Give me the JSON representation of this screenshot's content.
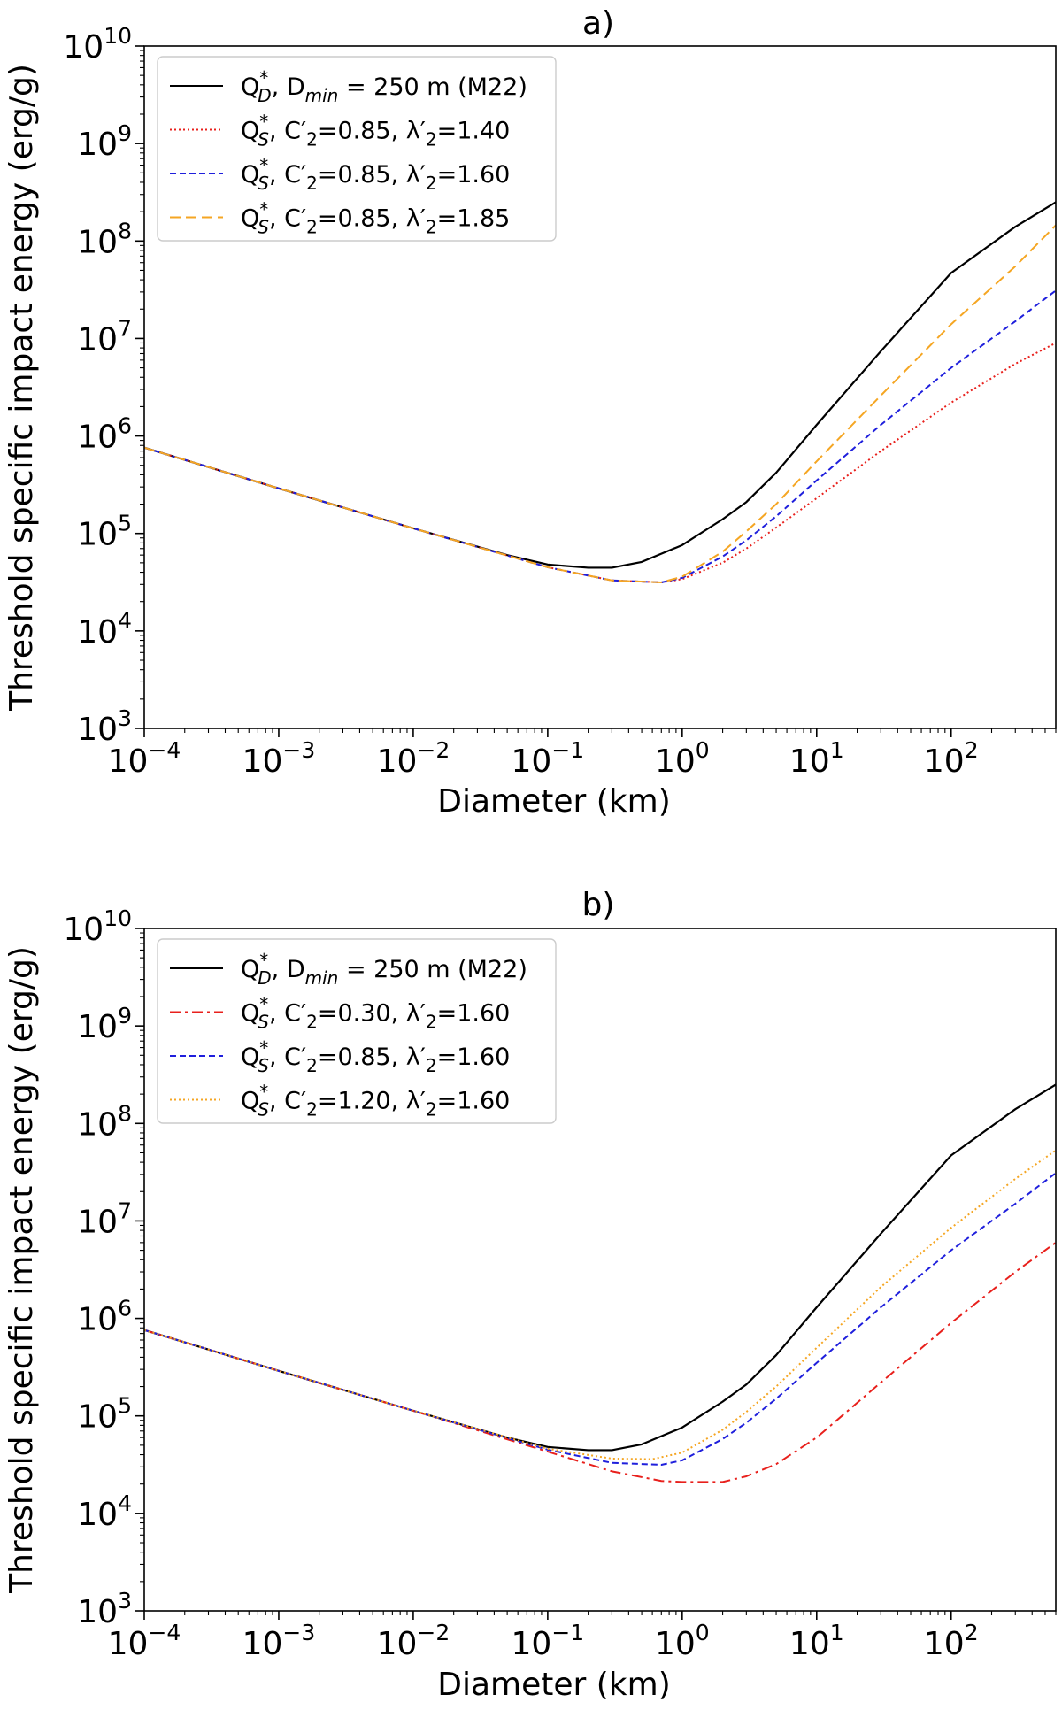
{
  "chart_data": [
    {
      "type": "line",
      "title": "a)",
      "xlabel": "Diameter (km)",
      "ylabel": "Threshold specific impact energy (erg/g)",
      "xscale": "log",
      "yscale": "log",
      "xlim": [
        0.0001,
        600
      ],
      "ylim": [
        1000,
        10000000000
      ],
      "x_tick_labels": [
        {
          "value": 0.0001,
          "base": "10",
          "exp": "−4"
        },
        {
          "value": 0.001,
          "base": "10",
          "exp": "−3"
        },
        {
          "value": 0.01,
          "base": "10",
          "exp": "−2"
        },
        {
          "value": 0.1,
          "base": "10",
          "exp": "−1"
        },
        {
          "value": 1,
          "base": "10",
          "exp": "0"
        },
        {
          "value": 10,
          "base": "10",
          "exp": "1"
        },
        {
          "value": 100,
          "base": "10",
          "exp": "2"
        }
      ],
      "y_tick_labels": [
        {
          "value": 1000,
          "base": "10",
          "exp": "3"
        },
        {
          "value": 10000,
          "base": "10",
          "exp": "4"
        },
        {
          "value": 100000,
          "base": "10",
          "exp": "5"
        },
        {
          "value": 1000000,
          "base": "10",
          "exp": "6"
        },
        {
          "value": 10000000,
          "base": "10",
          "exp": "7"
        },
        {
          "value": 100000000,
          "base": "10",
          "exp": "8"
        },
        {
          "value": 1000000000,
          "base": "10",
          "exp": "9"
        },
        {
          "value": 10000000000,
          "base": "10",
          "exp": "10"
        }
      ],
      "legend_position": "top-left",
      "series": [
        {
          "name": "Q*D, Dmin = 250 m (M22)",
          "label": {
            "q": "Q",
            "sup": "*",
            "sub": "D",
            "text1": ", D",
            "sub2": "min",
            "text2": " = 250 m (M22)"
          },
          "color": "#000000",
          "style": "solid",
          "x": [
            0.0001,
            0.001,
            0.01,
            0.05,
            0.1,
            0.2,
            0.3,
            0.5,
            1,
            2,
            3,
            5,
            10,
            30,
            100,
            300,
            600
          ],
          "y": [
            760000,
            290000,
            113000,
            60000,
            48000,
            44500,
            44500,
            51000,
            76000,
            140000,
            210000,
            420000,
            1300000,
            7400000,
            47000000,
            140000000,
            250000000
          ]
        },
        {
          "name": "Q*S, C′2=0.85, λ′2=1.40",
          "label": {
            "q": "Q",
            "sup": "*",
            "sub": "S",
            "text1": ", C′",
            "sub2": "2",
            "text2": "=0.85, λ′",
            "sub3": "2",
            "text3": "=1.40"
          },
          "color": "#e8201c",
          "style": "dotted",
          "x": [
            0.0001,
            0.001,
            0.01,
            0.1,
            0.3,
            0.7,
            1,
            2,
            3,
            5,
            10,
            30,
            100,
            300,
            600
          ],
          "y": [
            760000,
            290000,
            113000,
            45000,
            33000,
            31500,
            34000,
            50000,
            70000,
            115000,
            230000,
            700000,
            2200000,
            5500000,
            9000000
          ]
        },
        {
          "name": "Q*S, C′2=0.85, λ′2=1.60",
          "label": {
            "q": "Q",
            "sup": "*",
            "sub": "S",
            "text1": ", C′",
            "sub2": "2",
            "text2": "=0.85, λ′",
            "sub3": "2",
            "text3": "=1.60"
          },
          "color": "#1f1fdc",
          "style": "dashed",
          "x": [
            0.0001,
            0.001,
            0.01,
            0.1,
            0.3,
            0.7,
            1,
            2,
            3,
            5,
            10,
            30,
            100,
            300,
            600
          ],
          "y": [
            760000,
            290000,
            113000,
            45000,
            33000,
            31500,
            35000,
            58000,
            85000,
            150000,
            350000,
            1300000,
            5000000,
            15000000,
            31000000
          ]
        },
        {
          "name": "Q*S, C′2=0.85, λ′2=1.85",
          "label": {
            "q": "Q",
            "sup": "*",
            "sub": "S",
            "text1": ", C′",
            "sub2": "2",
            "text2": "=0.85, λ′",
            "sub3": "2",
            "text3": "=1.85"
          },
          "color": "#f5a623",
          "style": "dashed-long",
          "x": [
            0.0001,
            0.001,
            0.01,
            0.1,
            0.3,
            0.7,
            1,
            2,
            3,
            5,
            10,
            30,
            100,
            300,
            600
          ],
          "y": [
            760000,
            290000,
            113000,
            45000,
            33000,
            31500,
            36000,
            65000,
            105000,
            200000,
            550000,
            2600000,
            14000000,
            55000000,
            145000000
          ]
        }
      ]
    },
    {
      "type": "line",
      "title": "b)",
      "xlabel": "Diameter (km)",
      "ylabel": "Threshold specific impact energy (erg/g)",
      "xscale": "log",
      "yscale": "log",
      "xlim": [
        0.0001,
        600
      ],
      "ylim": [
        1000,
        10000000000
      ],
      "x_tick_labels": [
        {
          "value": 0.0001,
          "base": "10",
          "exp": "−4"
        },
        {
          "value": 0.001,
          "base": "10",
          "exp": "−3"
        },
        {
          "value": 0.01,
          "base": "10",
          "exp": "−2"
        },
        {
          "value": 0.1,
          "base": "10",
          "exp": "−1"
        },
        {
          "value": 1,
          "base": "10",
          "exp": "0"
        },
        {
          "value": 10,
          "base": "10",
          "exp": "1"
        },
        {
          "value": 100,
          "base": "10",
          "exp": "2"
        }
      ],
      "y_tick_labels": [
        {
          "value": 1000,
          "base": "10",
          "exp": "3"
        },
        {
          "value": 10000,
          "base": "10",
          "exp": "4"
        },
        {
          "value": 100000,
          "base": "10",
          "exp": "5"
        },
        {
          "value": 1000000,
          "base": "10",
          "exp": "6"
        },
        {
          "value": 10000000,
          "base": "10",
          "exp": "7"
        },
        {
          "value": 100000000,
          "base": "10",
          "exp": "8"
        },
        {
          "value": 1000000000,
          "base": "10",
          "exp": "9"
        },
        {
          "value": 10000000000,
          "base": "10",
          "exp": "10"
        }
      ],
      "legend_position": "top-left",
      "series": [
        {
          "name": "Q*D, Dmin = 250 m (M22)",
          "label": {
            "q": "Q",
            "sup": "*",
            "sub": "D",
            "text1": ", D",
            "sub2": "min",
            "text2": " = 250 m (M22)"
          },
          "color": "#000000",
          "style": "solid",
          "x": [
            0.0001,
            0.001,
            0.01,
            0.05,
            0.1,
            0.2,
            0.3,
            0.5,
            1,
            2,
            3,
            5,
            10,
            30,
            100,
            300,
            600
          ],
          "y": [
            760000,
            290000,
            113000,
            60000,
            48000,
            44500,
            44500,
            51000,
            76000,
            140000,
            210000,
            420000,
            1300000,
            7400000,
            47000000,
            140000000,
            250000000
          ]
        },
        {
          "name": "Q*S, C′2=0.30, λ′2=1.60",
          "label": {
            "q": "Q",
            "sup": "*",
            "sub": "S",
            "text1": ", C′",
            "sub2": "2",
            "text2": "=0.30, λ′",
            "sub3": "2",
            "text3": "=1.60"
          },
          "color": "#e8201c",
          "style": "dashdot",
          "x": [
            0.0001,
            0.001,
            0.01,
            0.1,
            0.3,
            0.7,
            1,
            2,
            3,
            5,
            10,
            30,
            100,
            300,
            600
          ],
          "y": [
            760000,
            290000,
            113000,
            43000,
            27000,
            21500,
            21000,
            21000,
            24000,
            32000,
            60000,
            220000,
            900000,
            3000000,
            6000000
          ]
        },
        {
          "name": "Q*S, C′2=0.85, λ′2=1.60",
          "label": {
            "q": "Q",
            "sup": "*",
            "sub": "S",
            "text1": ", C′",
            "sub2": "2",
            "text2": "=0.85, λ′",
            "sub3": "2",
            "text3": "=1.60"
          },
          "color": "#1f1fdc",
          "style": "dashed",
          "x": [
            0.0001,
            0.001,
            0.01,
            0.1,
            0.3,
            0.7,
            1,
            2,
            3,
            5,
            10,
            30,
            100,
            300,
            600
          ],
          "y": [
            760000,
            290000,
            113000,
            45000,
            33000,
            31500,
            35000,
            58000,
            85000,
            150000,
            350000,
            1300000,
            5000000,
            15000000,
            31000000
          ]
        },
        {
          "name": "Q*S, C′2=1.20, λ′2=1.60",
          "label": {
            "q": "Q",
            "sup": "*",
            "sub": "S",
            "text1": ", C′",
            "sub2": "2",
            "text2": "=1.20, λ′",
            "sub3": "2",
            "text3": "=1.60"
          },
          "color": "#f5a623",
          "style": "dotted",
          "x": [
            0.0001,
            0.001,
            0.01,
            0.1,
            0.3,
            0.6,
            1,
            2,
            3,
            5,
            10,
            30,
            100,
            300,
            600
          ],
          "y": [
            760000,
            290000,
            113000,
            46000,
            36500,
            36000,
            42000,
            72000,
            110000,
            200000,
            500000,
            2100000,
            8500000,
            27000000,
            53000000
          ]
        }
      ]
    }
  ]
}
